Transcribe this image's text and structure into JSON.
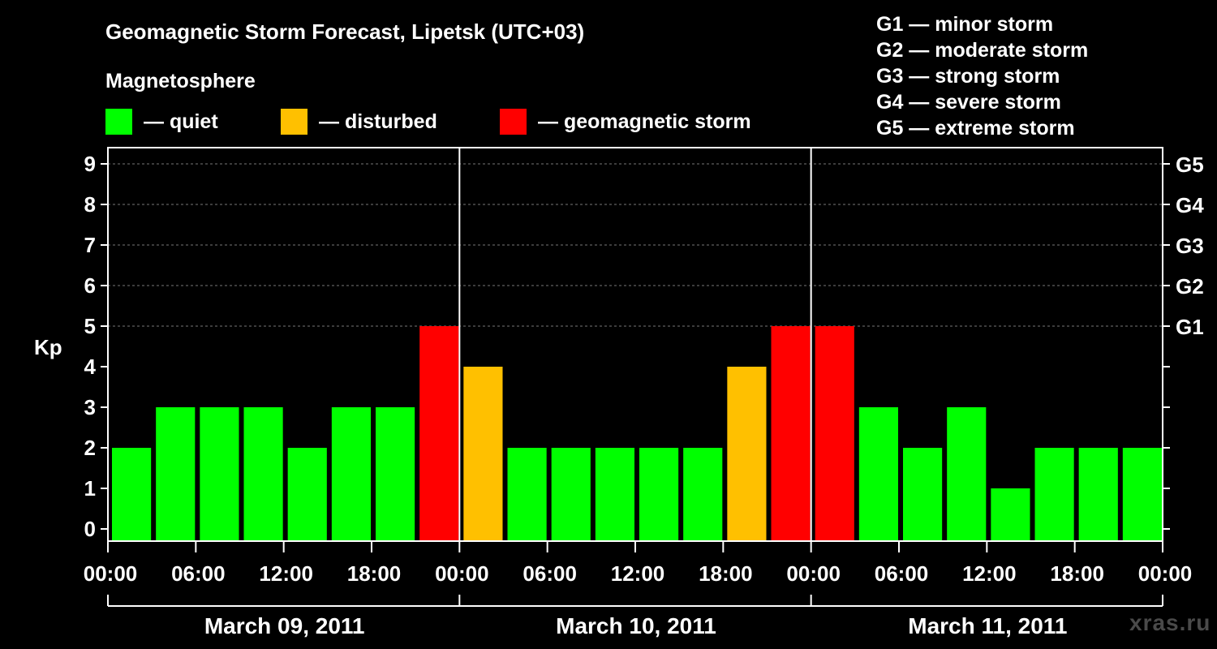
{
  "title": "Geomagnetic Storm Forecast, Lipetsk (UTC+03)",
  "subtitle": "Magnetosphere",
  "legend": [
    {
      "label": "— quiet",
      "color": "#00ff00"
    },
    {
      "label": "— disturbed",
      "color": "#ffc000"
    },
    {
      "label": "— geomagnetic storm",
      "color": "#ff0000"
    }
  ],
  "g_scale": [
    "G1 — minor storm",
    "G2 — moderate storm",
    "G3 — strong storm",
    "G4 — severe storm",
    "G5 — extreme storm"
  ],
  "watermark": "xras.ru",
  "chart_data": {
    "type": "bar",
    "ylabel": "Kp",
    "ylim": [
      0,
      9
    ],
    "yticks": [
      0,
      1,
      2,
      3,
      4,
      5,
      6,
      7,
      8,
      9
    ],
    "right_ticks": [
      {
        "value": 5,
        "label": "G1"
      },
      {
        "value": 6,
        "label": "G2"
      },
      {
        "value": 7,
        "label": "G3"
      },
      {
        "value": 8,
        "label": "G4"
      },
      {
        "value": 9,
        "label": "G5"
      }
    ],
    "grid": "dashed horizontal at 6-9 and 5",
    "x_tick_labels": [
      "00:00",
      "06:00",
      "12:00",
      "18:00",
      "00:00",
      "06:00",
      "12:00",
      "18:00",
      "00:00",
      "06:00",
      "12:00",
      "18:00",
      "00:00"
    ],
    "days": [
      "March 09, 2011",
      "March 10, 2011",
      "March 11, 2011"
    ],
    "values": [
      2,
      3,
      3,
      3,
      2,
      3,
      3,
      5,
      4,
      2,
      2,
      2,
      2,
      2,
      4,
      5,
      5,
      3,
      2,
      3,
      1,
      2,
      2,
      2
    ],
    "colors": {
      "quiet": "#00ff00",
      "disturbed": "#ffc000",
      "storm": "#ff0000"
    }
  }
}
